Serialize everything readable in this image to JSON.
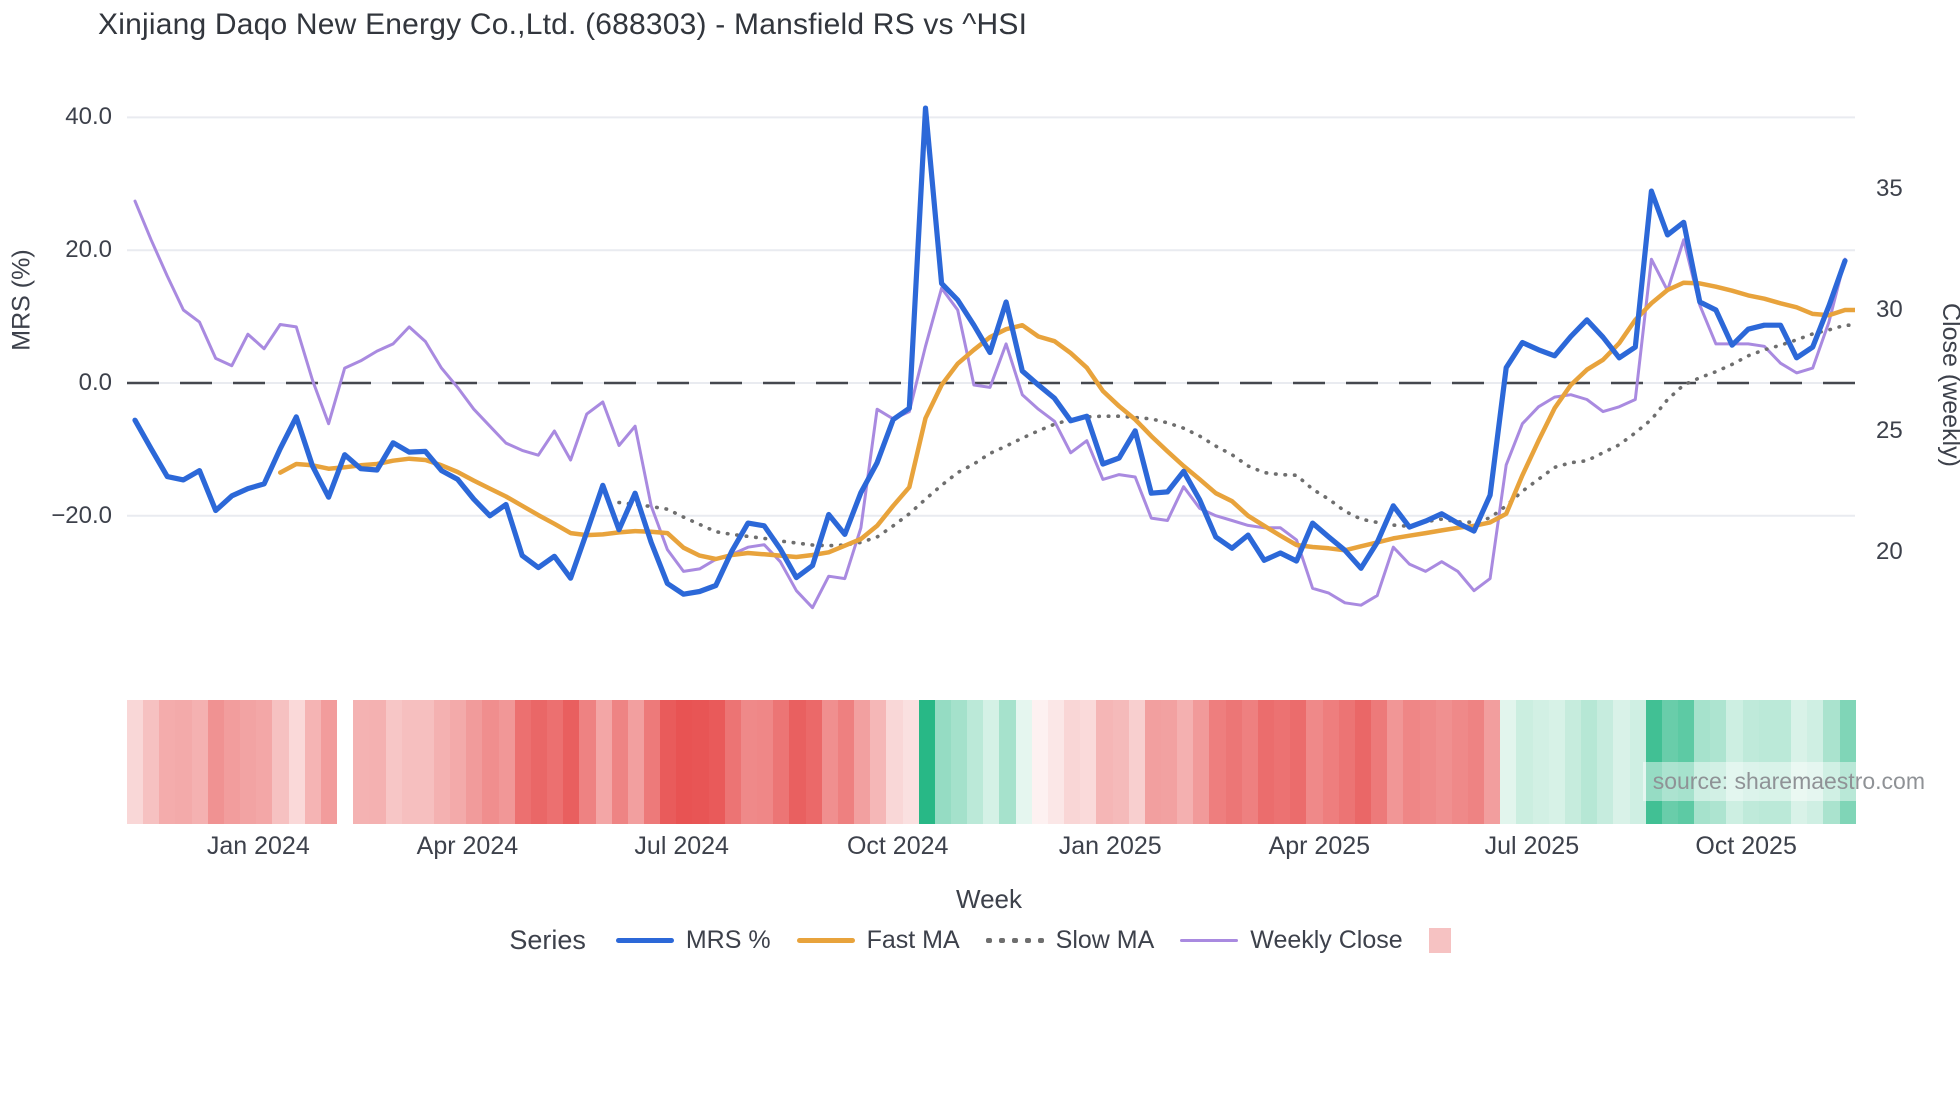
{
  "title": "Xinjiang Daqo New Energy Co.,Ltd. (688303) - Mansfield RS vs ^HSI",
  "watermark": "source: sharemaestro.com",
  "axes": {
    "left_title": "MRS (%)",
    "right_title": "Close (weekly)",
    "x_title": "Week",
    "left_ticks": [
      {
        "label": "40.0",
        "value": 40
      },
      {
        "label": "20.0",
        "value": 20
      },
      {
        "label": "0.0",
        "value": 0
      },
      {
        "label": "−20.0",
        "value": -20
      }
    ],
    "right_ticks": [
      {
        "label": "35",
        "value": 35
      },
      {
        "label": "30",
        "value": 30
      },
      {
        "label": "25",
        "value": 25
      },
      {
        "label": "20",
        "value": 20
      }
    ],
    "x_ticks": [
      {
        "label": "Jan 2024",
        "pos": 0.076
      },
      {
        "label": "Apr 2024",
        "pos": 0.197
      },
      {
        "label": "Jul 2024",
        "pos": 0.321
      },
      {
        "label": "Oct 2024",
        "pos": 0.446
      },
      {
        "label": "Jan 2025",
        "pos": 0.569
      },
      {
        "label": "Apr 2025",
        "pos": 0.69
      },
      {
        "label": "Jul 2025",
        "pos": 0.813
      },
      {
        "label": "Oct 2025",
        "pos": 0.937
      }
    ]
  },
  "legend": {
    "title": "Series",
    "entries": [
      {
        "label": "MRS %",
        "style": "line",
        "color": "#2c68d8"
      },
      {
        "label": "Fast MA",
        "style": "line",
        "color": "#e8a33c"
      },
      {
        "label": "Slow MA",
        "style": "dotted",
        "color": "#6e6e6e"
      },
      {
        "label": "Weekly Close",
        "style": "line-thin",
        "color": "#a98ae0"
      },
      {
        "label": "",
        "style": "square",
        "color": "#f6c2c2"
      }
    ]
  },
  "colors": {
    "mrs": "#2c68d8",
    "fast_ma": "#e8a33c",
    "slow_ma": "#6e6e6e",
    "weekly_close": "#a98ae0",
    "zero_line": "#45484f",
    "gridline": "#e9ebf0",
    "strip_red_strong": "#e74d4d",
    "strip_green_strong": "#28b886",
    "text": "#3d414b"
  },
  "chart_data": {
    "type": "line",
    "title": "Xinjiang Daqo New Energy Co.,Ltd. (688303) - Mansfield RS vs ^HSI",
    "xlabel": "Week",
    "ylabel_left": "MRS (%)",
    "ylabel_right": "Close (weekly)",
    "x_range": [
      "Nov 2023",
      "Nov 2025"
    ],
    "ylim_left": [
      -35,
      44
    ],
    "ylim_right": [
      17,
      36.5
    ],
    "grid": true,
    "legend_position": "bottom",
    "zero_reference_line": 0,
    "series": [
      {
        "name": "MRS %",
        "axis": "left",
        "values": [
          -5.6,
          -9.9,
          -14.1,
          -14.6,
          -13.2,
          -19.2,
          -17.0,
          -15.9,
          -15.2,
          -9.9,
          -5.1,
          -12.5,
          -17.2,
          -10.8,
          -12.9,
          -13.1,
          -9.0,
          -10.4,
          -10.3,
          -13.2,
          -14.5,
          -17.5,
          -20.0,
          -18.3,
          -26.0,
          -27.8,
          -26.1,
          -29.4,
          -22.5,
          -15.4,
          -22.1,
          -16.6,
          -24.0,
          -30.2,
          -31.8,
          -31.4,
          -30.5,
          -25.3,
          -21.1,
          -21.5,
          -25.0,
          -29.3,
          -27.5,
          -19.8,
          -22.8,
          -16.5,
          -12.0,
          -5.5,
          -3.8,
          41.4,
          15.0,
          12.5,
          8.7,
          4.6,
          12.2,
          1.8,
          -0.3,
          -2.3,
          -5.7,
          -5.0,
          -12.2,
          -11.3,
          -7.2,
          -16.6,
          -16.4,
          -13.3,
          -17.6,
          -23.2,
          -24.9,
          -22.9,
          -26.7,
          -25.6,
          -26.8,
          -21.1,
          -23.2,
          -25.2,
          -27.9,
          -24.0,
          -18.5,
          -21.7,
          -20.8,
          -19.7,
          -21.1,
          -22.3,
          -16.9,
          2.3,
          6.1,
          5.0,
          4.1,
          7.0,
          9.5,
          6.9,
          3.8,
          5.4,
          28.9,
          22.3,
          24.2,
          12.2,
          11.0,
          5.7,
          8.1,
          8.7,
          8.7,
          3.8,
          5.4,
          11.6,
          18.4
        ]
      },
      {
        "name": "Fast MA",
        "axis": "left",
        "values": [
          null,
          null,
          null,
          null,
          null,
          null,
          null,
          null,
          null,
          -13.5,
          -12.2,
          -12.4,
          -12.9,
          -12.7,
          -12.4,
          -12.2,
          -11.7,
          -11.4,
          -11.6,
          -12.4,
          -13.4,
          -14.7,
          -15.9,
          -17.1,
          -18.5,
          -19.9,
          -21.2,
          -22.6,
          -22.9,
          -22.8,
          -22.5,
          -22.3,
          -22.4,
          -22.6,
          -24.8,
          -26.0,
          -26.5,
          -25.9,
          -25.6,
          -25.8,
          -26.0,
          -26.2,
          -25.9,
          -25.5,
          -24.5,
          -23.5,
          -21.5,
          -18.5,
          -15.7,
          -5.3,
          -0.3,
          2.9,
          5.0,
          6.9,
          8.1,
          8.7,
          7.0,
          6.3,
          4.5,
          2.3,
          -1.2,
          -3.5,
          -5.5,
          -8.0,
          -10.3,
          -12.5,
          -14.5,
          -16.6,
          -17.8,
          -20.0,
          -21.5,
          -23.0,
          -24.4,
          -24.7,
          -24.9,
          -25.2,
          -24.6,
          -24.0,
          -23.4,
          -23.0,
          -22.6,
          -22.2,
          -21.8,
          -21.5,
          -21.0,
          -19.7,
          -13.9,
          -8.7,
          -3.8,
          -0.3,
          2.0,
          3.5,
          6.0,
          9.5,
          12.0,
          14.0,
          15.1,
          15.0,
          14.5,
          13.9,
          13.2,
          12.7,
          12.0,
          11.4,
          10.4,
          10.2,
          11.0,
          11.0
        ]
      },
      {
        "name": "Slow MA",
        "axis": "left",
        "values": [
          null,
          null,
          null,
          null,
          null,
          null,
          null,
          null,
          null,
          null,
          null,
          null,
          null,
          null,
          null,
          null,
          null,
          null,
          null,
          null,
          null,
          null,
          null,
          null,
          null,
          null,
          null,
          null,
          null,
          null,
          -18.0,
          -18.3,
          -18.6,
          -19.0,
          -20.2,
          -21.3,
          -22.4,
          -22.8,
          -23.1,
          -23.4,
          -23.8,
          -24.1,
          -24.4,
          -24.5,
          -24.4,
          -24.0,
          -23.2,
          -21.5,
          -19.7,
          -17.5,
          -15.4,
          -13.5,
          -12.2,
          -10.6,
          -9.5,
          -8.3,
          -7.2,
          -6.2,
          -5.5,
          -5.1,
          -5.0,
          -5.0,
          -5.2,
          -5.4,
          -6.0,
          -6.8,
          -8.0,
          -9.5,
          -10.8,
          -12.5,
          -13.5,
          -13.8,
          -13.9,
          -16.0,
          -17.5,
          -19.3,
          -20.5,
          -21.0,
          -21.4,
          -21.6,
          -20.9,
          -20.5,
          -20.9,
          -21.0,
          -20.3,
          -18.5,
          -16.3,
          -14.5,
          -12.7,
          -12.0,
          -11.7,
          -10.5,
          -9.3,
          -7.5,
          -5.5,
          -2.5,
          -0.3,
          0.8,
          1.7,
          2.8,
          4.1,
          5.0,
          5.7,
          6.5,
          7.4,
          8.0,
          8.7,
          8.7
        ]
      },
      {
        "name": "Weekly Close",
        "axis": "right",
        "values": [
          34.5,
          32.9,
          31.4,
          30.0,
          29.5,
          28.0,
          27.7,
          29.0,
          28.4,
          29.4,
          29.3,
          27.1,
          25.3,
          27.6,
          27.9,
          28.3,
          28.6,
          29.3,
          28.7,
          27.6,
          26.8,
          25.9,
          25.2,
          24.5,
          24.2,
          24.0,
          25.0,
          23.8,
          25.7,
          26.2,
          24.4,
          25.2,
          21.9,
          20.1,
          19.2,
          19.3,
          19.7,
          19.9,
          20.2,
          20.3,
          19.6,
          18.4,
          17.7,
          19.0,
          18.9,
          21.0,
          25.9,
          25.5,
          25.8,
          28.5,
          30.9,
          30.0,
          26.9,
          26.8,
          28.6,
          26.5,
          25.9,
          25.4,
          24.1,
          24.6,
          23.0,
          23.2,
          23.1,
          21.4,
          21.3,
          22.7,
          21.8,
          21.5,
          21.3,
          21.1,
          21.0,
          21.0,
          20.5,
          18.5,
          18.3,
          17.9,
          17.8,
          18.2,
          20.2,
          19.5,
          19.2,
          19.6,
          19.2,
          18.4,
          18.9,
          23.6,
          25.3,
          26.0,
          26.4,
          26.5,
          26.3,
          25.8,
          26.0,
          26.3,
          32.1,
          30.8,
          32.9,
          30.2,
          28.6,
          28.6,
          28.6,
          28.5,
          27.8,
          27.4,
          27.6,
          29.5,
          32.1
        ]
      }
    ],
    "heatmap_strip": {
      "description": "weekly relative-strength heat strip: red = negative MRS, green = positive MRS, intensity proportional to |MRS|",
      "derived_from": "MRS %",
      "missing_weeks": [
        13
      ]
    }
  }
}
